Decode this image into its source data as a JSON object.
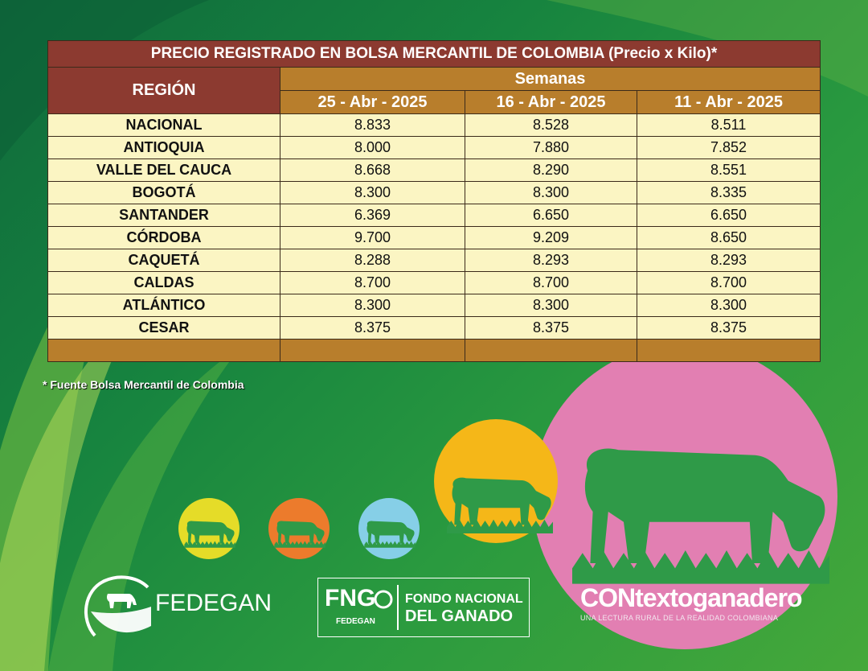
{
  "colors": {
    "title_bg": "#8c3a30",
    "header_bg": "#b87e2c",
    "row_bg": "#fbf5c3",
    "background_green": "#1d8a41",
    "pink": "#e27fb2",
    "yellow": "#e5dc28",
    "orange": "#ec7b2c",
    "light_blue": "#86cfe7",
    "gold": "#f5b718"
  },
  "table": {
    "title": "PRECIO REGISTRADO EN BOLSA MERCANTIL DE COLOMBIA (Precio x Kilo)*",
    "region_header": "REGIÓN",
    "weeks_header": "Semanas",
    "dates": [
      "25 - Abr - 2025",
      "16 - Abr - 2025",
      "11 - Abr - 2025"
    ],
    "rows": [
      {
        "region": "NACIONAL",
        "values": [
          "8.833",
          "8.528",
          "8.511"
        ]
      },
      {
        "region": "ANTIOQUIA",
        "values": [
          "8.000",
          "7.880",
          "7.852"
        ]
      },
      {
        "region": "VALLE DEL CAUCA",
        "values": [
          "8.668",
          "8.290",
          "8.551"
        ]
      },
      {
        "region": "BOGOTÁ",
        "values": [
          "8.300",
          "8.300",
          "8.335"
        ]
      },
      {
        "region": "SANTANDER",
        "values": [
          "6.369",
          "6.650",
          "6.650"
        ]
      },
      {
        "region": "CÓRDOBA",
        "values": [
          "9.700",
          "9.209",
          "8.650"
        ]
      },
      {
        "region": "CAQUETÁ",
        "values": [
          "8.288",
          "8.293",
          "8.293"
        ]
      },
      {
        "region": "CALDAS",
        "values": [
          "8.700",
          "8.700",
          "8.700"
        ]
      },
      {
        "region": "ATLÁNTICO",
        "values": [
          "8.300",
          "8.300",
          "8.300"
        ]
      },
      {
        "region": "CESAR",
        "values": [
          "8.375",
          "8.375",
          "8.375"
        ]
      }
    ]
  },
  "footnote": "* Fuente Bolsa Mercantil de Colombia",
  "logos": {
    "fedegan": "FEDEGAN",
    "fng_letters": "FNG",
    "fng_sub": "FEDEGAN",
    "fng_line1": "FONDO NACIONAL",
    "fng_line2": "DEL GANADO",
    "contexto_name": "CONtextoganadero",
    "contexto_tagline": "UNA LECTURA RURAL DE LA REALIDAD COLOMBIANA"
  }
}
